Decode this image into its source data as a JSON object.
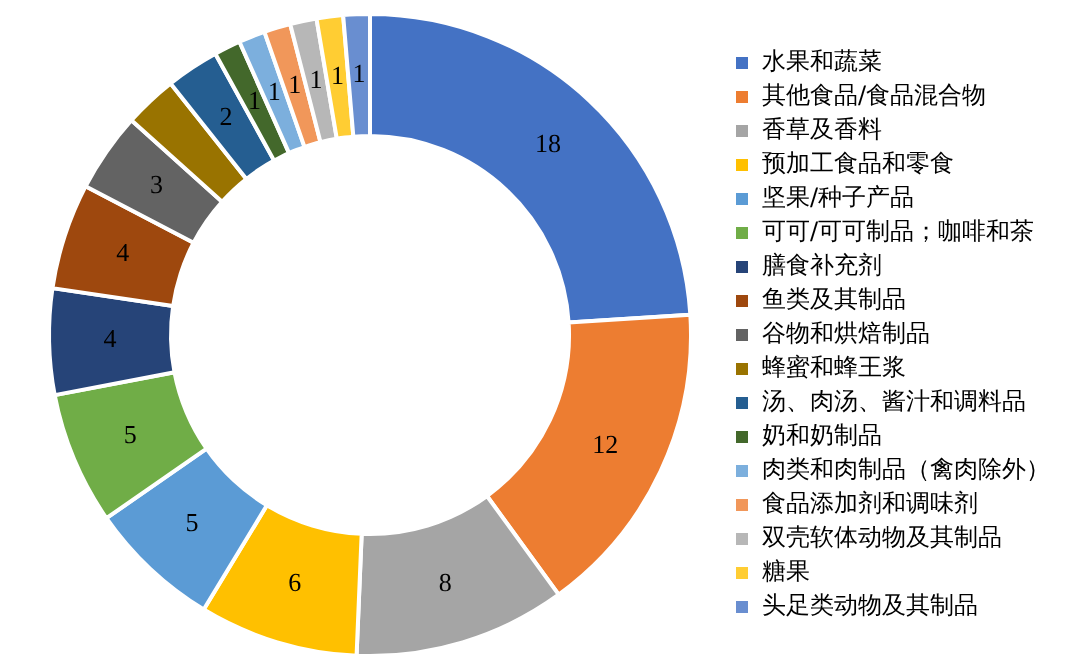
{
  "chart_data": {
    "type": "donut",
    "categories": [
      "水果和蔬菜",
      "其他食品/食品混合物",
      "香草及香料",
      "预加工食品和零食",
      "坚果/种子产品",
      "可可/可可制品；咖啡和茶",
      "膳食补充剂",
      "鱼类及其制品",
      "谷物和烘焙制品",
      "蜂蜜和蜂王浆",
      "汤、肉汤、酱汁和调料品",
      "奶和奶制品",
      "肉类和肉制品（禽肉除外）",
      "食品添加剂和调味剂",
      "双壳软体动物及其制品",
      "糖果",
      "头足类动物及其制品"
    ],
    "values": [
      18,
      12,
      8,
      6,
      5,
      5,
      4,
      4,
      3,
      2,
      2,
      1,
      1,
      1,
      1,
      1,
      1
    ],
    "value_labels": [
      "18",
      "12",
      "8",
      "6",
      "5",
      "5",
      "4",
      "4",
      "3",
      null,
      "2",
      "1",
      "1",
      "1",
      "1",
      "1",
      "1"
    ],
    "colors": [
      "#4472c4",
      "#ed7d31",
      "#a5a5a5",
      "#ffc000",
      "#5b9bd5",
      "#70ad47",
      "#264478",
      "#9e480e",
      "#636363",
      "#997300",
      "#255e91",
      "#43682b",
      "#7cafdd",
      "#f1975a",
      "#b7b7b7",
      "#ffcd33",
      "#698ed0"
    ],
    "legend": "right"
  }
}
